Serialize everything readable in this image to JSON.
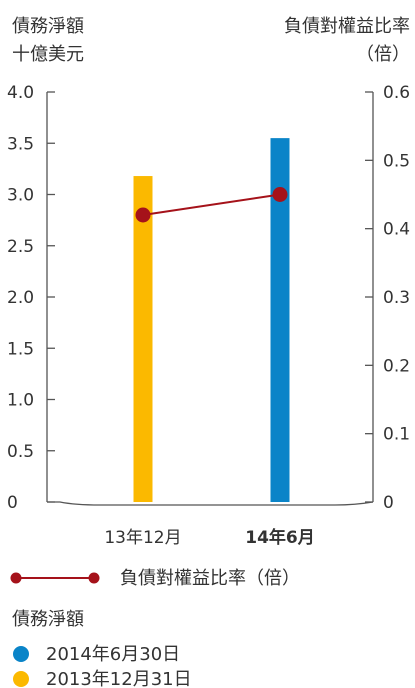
{
  "chart_data": {
    "type": "bar",
    "left_axis_label": [
      "債務淨額",
      "十億美元"
    ],
    "right_axis_label": [
      "負債對權益比率",
      "（倍）"
    ],
    "categories": [
      "13年12月",
      "14年6月"
    ],
    "highlight_category_color": "#1f7ec7",
    "left_ylim": [
      0,
      4.0
    ],
    "left_ticks": [
      "0",
      "0.5",
      "1.0",
      "1.5",
      "2.0",
      "2.5",
      "3.0",
      "3.5",
      "4.0"
    ],
    "right_ylim": [
      0,
      0.6
    ],
    "right_ticks": [
      "0",
      "0.1",
      "0.2",
      "0.3",
      "0.4",
      "0.5",
      "0.6"
    ],
    "series": [
      {
        "name": "2013年12月31日",
        "kind": "bar",
        "color": "#fbb900",
        "values": [
          3.18,
          null
        ]
      },
      {
        "name": "2014年6月30日",
        "kind": "bar",
        "color": "#0a84c8",
        "values": [
          null,
          3.55
        ]
      },
      {
        "name": "負債對權益比率（倍）",
        "kind": "line",
        "axis": "right",
        "color": "#a5121a",
        "values": [
          0.42,
          0.45
        ]
      }
    ],
    "legend": {
      "line_label": "負債對權益比率（倍）",
      "title": "債務淨額",
      "items": [
        "2014年6月30日",
        "2013年12月31日"
      ]
    },
    "grid": false
  }
}
